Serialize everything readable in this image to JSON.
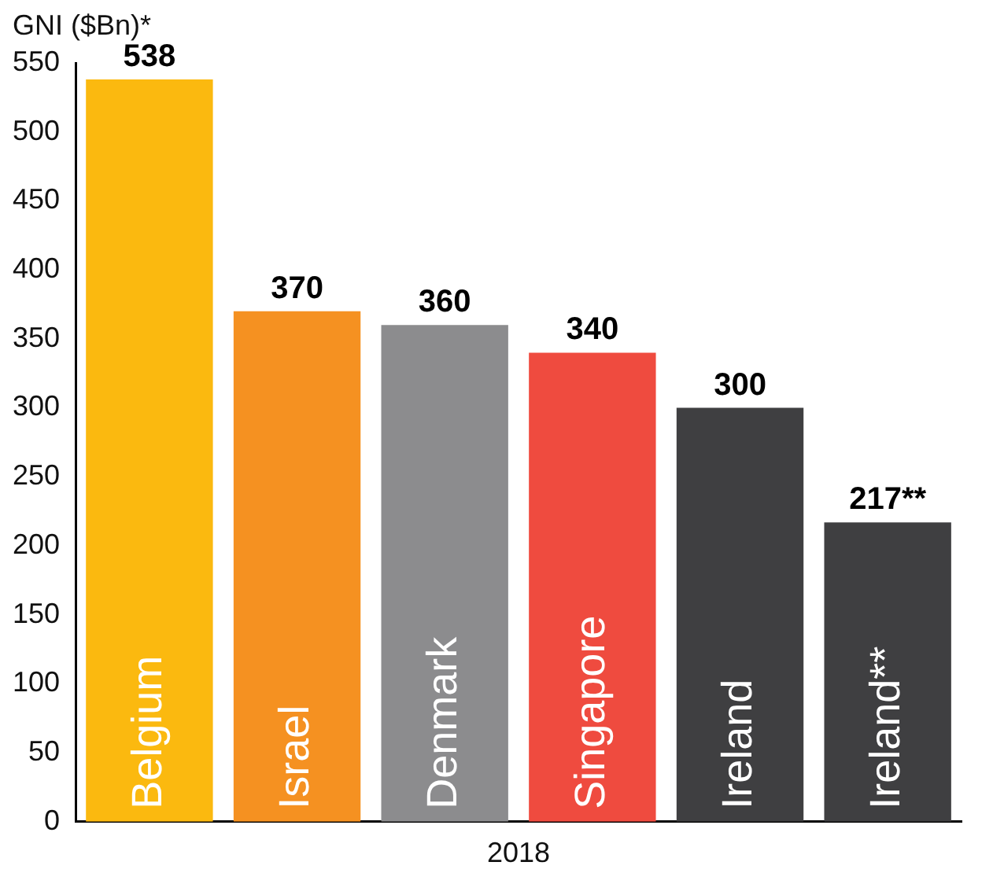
{
  "chart_data": {
    "type": "bar",
    "ylabel": "GNI ($Bn)*",
    "xlabel": "2018",
    "categories": [
      "Belgium",
      "Israel",
      "Denmark",
      "Singapore",
      "Ireland",
      "Ireland**"
    ],
    "values": [
      538,
      370,
      360,
      340,
      300,
      217
    ],
    "colors": [
      "#fbb90f",
      "#f59121",
      "#8c8c8e",
      "#ef4b3f",
      "#3f3f41",
      "#3f3f41"
    ],
    "value_labels": [
      "538",
      "370",
      "360",
      "340",
      "300",
      "217**"
    ],
    "ylim": [
      0,
      550
    ],
    "yticks": [
      0,
      50,
      100,
      150,
      200,
      250,
      300,
      350,
      400,
      450,
      500,
      550
    ],
    "grid": false,
    "legend": false
  }
}
